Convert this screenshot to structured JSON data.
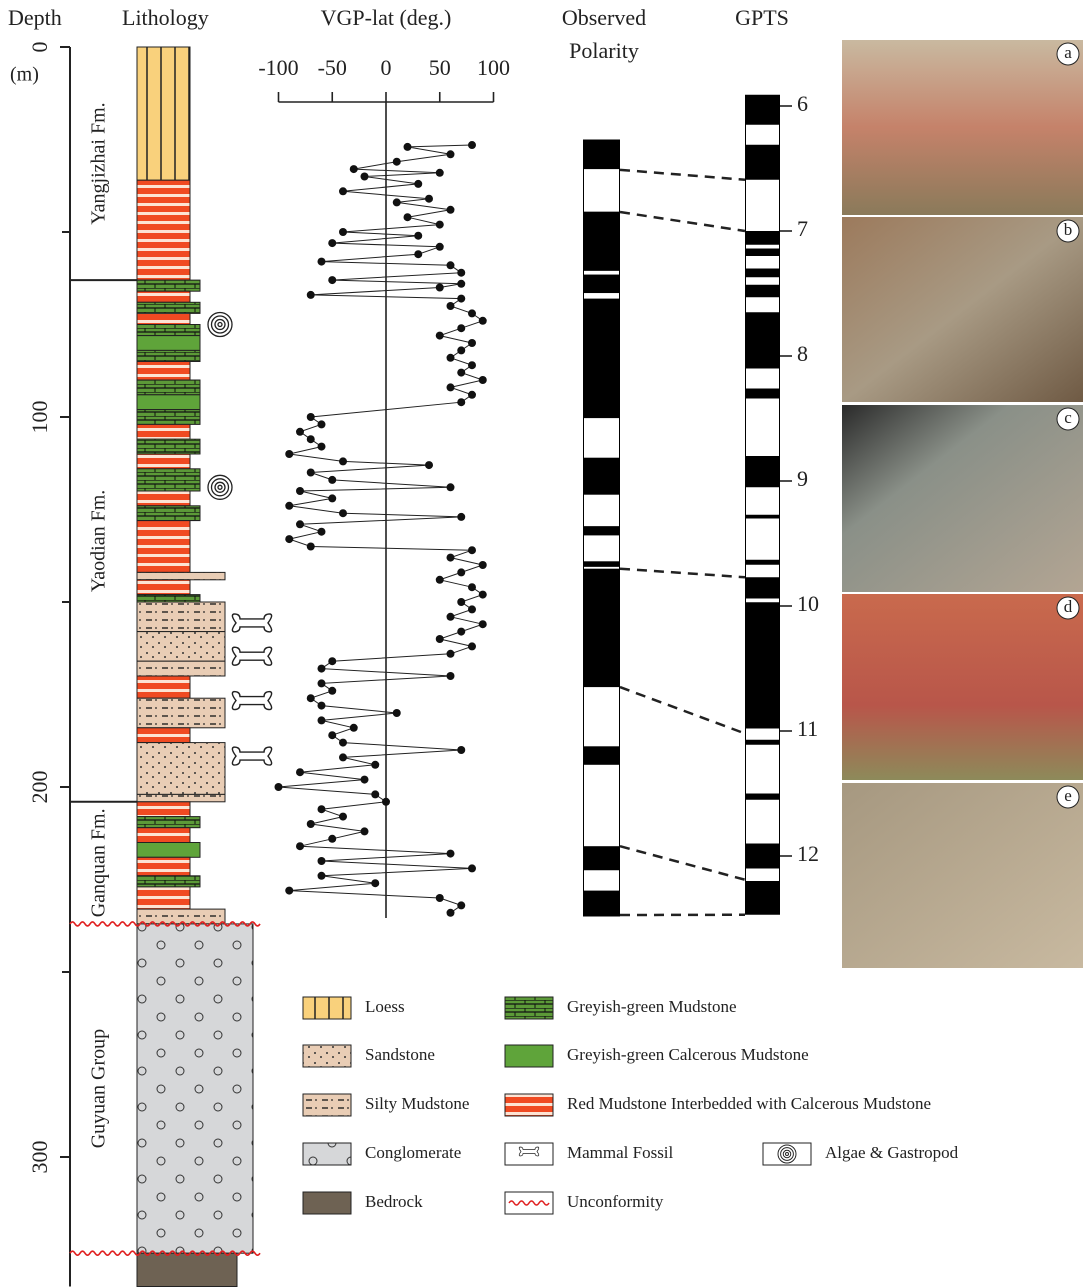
{
  "depth_axis": {
    "title": "Depth",
    "unit": "(m)",
    "lim": [
      0,
      335
    ],
    "ticks": [
      0,
      100,
      200,
      300
    ],
    "minor_ticks": [
      50,
      150,
      250
    ]
  },
  "lithology": {
    "title": "Lithology",
    "layers": [
      {
        "top": 0,
        "bottom": 36,
        "type": "loess"
      },
      {
        "top": 36,
        "bottom": 63,
        "type": "red"
      },
      {
        "top": 63,
        "bottom": 66,
        "type": "ggmud"
      },
      {
        "top": 66,
        "bottom": 69,
        "type": "red"
      },
      {
        "top": 69,
        "bottom": 72,
        "type": "ggmud"
      },
      {
        "top": 72,
        "bottom": 75,
        "type": "red"
      },
      {
        "top": 75,
        "bottom": 78,
        "type": "ggmud"
      },
      {
        "top": 78,
        "bottom": 82,
        "type": "ggcalc"
      },
      {
        "top": 82,
        "bottom": 85,
        "type": "ggmud"
      },
      {
        "top": 85,
        "bottom": 90,
        "type": "red"
      },
      {
        "top": 90,
        "bottom": 94,
        "type": "ggmud"
      },
      {
        "top": 94,
        "bottom": 98,
        "type": "ggcalc"
      },
      {
        "top": 98,
        "bottom": 102,
        "type": "ggmud"
      },
      {
        "top": 102,
        "bottom": 106,
        "type": "red"
      },
      {
        "top": 106,
        "bottom": 110,
        "type": "ggmud"
      },
      {
        "top": 110,
        "bottom": 114,
        "type": "red"
      },
      {
        "top": 114,
        "bottom": 120,
        "type": "ggmud"
      },
      {
        "top": 120,
        "bottom": 124,
        "type": "red"
      },
      {
        "top": 124,
        "bottom": 128,
        "type": "ggmud"
      },
      {
        "top": 128,
        "bottom": 142,
        "type": "red"
      },
      {
        "top": 142,
        "bottom": 144,
        "type": "silty"
      },
      {
        "top": 144,
        "bottom": 148,
        "type": "red"
      },
      {
        "top": 148,
        "bottom": 150,
        "type": "ggmud"
      },
      {
        "top": 150,
        "bottom": 158,
        "type": "silty"
      },
      {
        "top": 158,
        "bottom": 166,
        "type": "sand"
      },
      {
        "top": 166,
        "bottom": 170,
        "type": "silty"
      },
      {
        "top": 170,
        "bottom": 176,
        "type": "red"
      },
      {
        "top": 176,
        "bottom": 184,
        "type": "silty"
      },
      {
        "top": 184,
        "bottom": 188,
        "type": "red"
      },
      {
        "top": 188,
        "bottom": 202,
        "type": "sand"
      },
      {
        "top": 202,
        "bottom": 204,
        "type": "silty"
      },
      {
        "top": 204,
        "bottom": 208,
        "type": "red"
      },
      {
        "top": 208,
        "bottom": 211,
        "type": "ggmud"
      },
      {
        "top": 211,
        "bottom": 215,
        "type": "red"
      },
      {
        "top": 215,
        "bottom": 219,
        "type": "ggcalc"
      },
      {
        "top": 219,
        "bottom": 224,
        "type": "red"
      },
      {
        "top": 224,
        "bottom": 227,
        "type": "ggmud"
      },
      {
        "top": 227,
        "bottom": 233,
        "type": "red"
      },
      {
        "top": 233,
        "bottom": 237,
        "type": "silty"
      },
      {
        "top": 237,
        "bottom": 326,
        "type": "cong"
      },
      {
        "top": 326,
        "bottom": 335,
        "type": "bedrock"
      }
    ],
    "algae_depths": [
      75,
      119
    ],
    "mammal_depths": [
      157,
      166,
      178,
      193
    ],
    "unconformity_depths": [
      237,
      326
    ]
  },
  "formations": [
    {
      "name": "Yangjizhai Fm.",
      "top": 0,
      "bottom": 63
    },
    {
      "name": "Yaodian Fm.",
      "top": 63,
      "bottom": 204
    },
    {
      "name": "Ganquan Fm.",
      "top": 204,
      "bottom": 237
    },
    {
      "name": "Guyuan Group",
      "top": 237,
      "bottom": 326
    }
  ],
  "vgp": {
    "title": "VGP-lat (deg.)",
    "xlim": [
      -100,
      100
    ],
    "xticks": [
      -100,
      -50,
      0,
      50,
      100
    ],
    "depth": [
      26.5,
      27,
      29,
      31,
      33,
      34,
      35,
      37,
      39,
      41,
      42,
      44,
      46,
      48,
      50,
      51,
      53,
      54,
      56,
      58,
      59,
      61,
      63,
      64,
      65,
      67,
      68,
      70,
      72,
      74,
      76,
      78,
      80,
      82,
      84,
      86,
      88,
      90,
      92,
      94,
      96,
      100,
      102,
      104,
      106,
      108,
      110,
      112,
      113,
      115,
      117,
      119,
      120,
      122,
      124,
      126,
      127,
      129,
      131,
      133,
      135,
      136,
      138,
      140,
      142,
      144,
      146,
      148,
      150,
      152,
      154,
      156,
      158,
      160,
      162,
      164,
      166,
      168,
      170,
      172,
      174,
      176,
      178,
      180,
      182,
      184,
      186,
      188,
      190,
      192,
      194,
      196,
      198,
      200,
      202,
      204,
      206,
      208,
      210,
      212,
      214,
      216,
      218,
      220,
      222,
      224,
      226,
      228,
      230,
      232,
      234
    ],
    "lat": [
      80,
      20,
      60,
      10,
      -30,
      50,
      -20,
      30,
      -40,
      40,
      10,
      60,
      20,
      50,
      -40,
      30,
      -50,
      50,
      30,
      -60,
      60,
      70,
      -50,
      70,
      50,
      -70,
      70,
      60,
      80,
      90,
      70,
      50,
      80,
      70,
      60,
      80,
      70,
      90,
      60,
      80,
      70,
      -70,
      -60,
      -80,
      -70,
      -60,
      -90,
      -40,
      40,
      -70,
      -50,
      60,
      -80,
      -50,
      -90,
      -40,
      70,
      -80,
      -60,
      -90,
      -70,
      80,
      60,
      90,
      70,
      50,
      80,
      90,
      70,
      80,
      60,
      90,
      70,
      50,
      80,
      60,
      -50,
      -60,
      60,
      -60,
      -50,
      -70,
      -60,
      10,
      -60,
      -30,
      -50,
      -40,
      70,
      -40,
      -10,
      -80,
      -20,
      -100,
      -10,
      0,
      -60,
      -40,
      -70,
      -20,
      -50,
      -80,
      60,
      -60,
      80,
      -60,
      -10,
      -90,
      50,
      70,
      60
    ]
  },
  "observed_polarity": {
    "title_lines": [
      "Observed",
      "Polarity"
    ],
    "range": [
      25,
      235
    ],
    "reversed": [
      [
        33,
        44.5
      ],
      [
        60.5,
        61.5
      ],
      [
        66.5,
        68
      ],
      [
        100.3,
        111
      ],
      [
        121,
        129.5
      ],
      [
        132,
        139
      ],
      [
        140.5,
        141
      ],
      [
        173,
        189
      ],
      [
        194,
        216
      ],
      [
        222.5,
        228
      ]
    ]
  },
  "gpts": {
    "title": "GPTS",
    "range": [
      5.91,
      12.47
    ],
    "ticks": [
      6,
      7,
      8,
      9,
      10,
      11,
      12
    ],
    "reversed": [
      [
        6.15,
        6.31
      ],
      [
        6.59,
        7.0
      ],
      [
        7.11,
        7.14
      ],
      [
        7.2,
        7.3
      ],
      [
        7.37,
        7.43
      ],
      [
        7.53,
        7.65
      ],
      [
        8.1,
        8.26
      ],
      [
        8.34,
        8.8
      ],
      [
        9.05,
        9.27
      ],
      [
        9.3,
        9.63
      ],
      [
        9.67,
        9.77
      ],
      [
        9.94,
        9.97
      ],
      [
        10.98,
        11.07
      ],
      [
        11.11,
        11.5
      ],
      [
        11.55,
        11.9
      ],
      [
        12.1,
        12.2
      ]
    ]
  },
  "ties": [
    {
      "depth": 33.2,
      "age": 6.59
    },
    {
      "depth": 44.6,
      "age": 7.0
    },
    {
      "depth": 141,
      "age": 9.77
    },
    {
      "depth": 173,
      "age": 11.02
    },
    {
      "depth": 216,
      "age": 12.19
    },
    {
      "depth": 234.6,
      "age": 12.47
    }
  ],
  "photos": [
    {
      "label": "a"
    },
    {
      "label": "b"
    },
    {
      "label": "c"
    },
    {
      "label": "d"
    },
    {
      "label": "e"
    }
  ],
  "legend": [
    {
      "type": "loess",
      "label": "Loess"
    },
    {
      "type": "sand",
      "label": "Sandstone"
    },
    {
      "type": "silty",
      "label": "Silty Mudstone"
    },
    {
      "type": "cong",
      "label": "Conglomerate"
    },
    {
      "type": "bedrock",
      "label": "Bedrock"
    },
    {
      "type": "ggmud",
      "label": "Greyish-green Mudstone"
    },
    {
      "type": "ggcalc",
      "label": "Greyish-green Calcerous Mudstone"
    },
    {
      "type": "red",
      "label": "Red Mudstone Interbedded  with Calcerous Mudstone"
    },
    {
      "type": "mammal",
      "label": "Mammal Fossil"
    },
    {
      "type": "unconf",
      "label": "Unconformity"
    },
    {
      "type": "algae",
      "label": "Algae & Gastropod"
    }
  ]
}
